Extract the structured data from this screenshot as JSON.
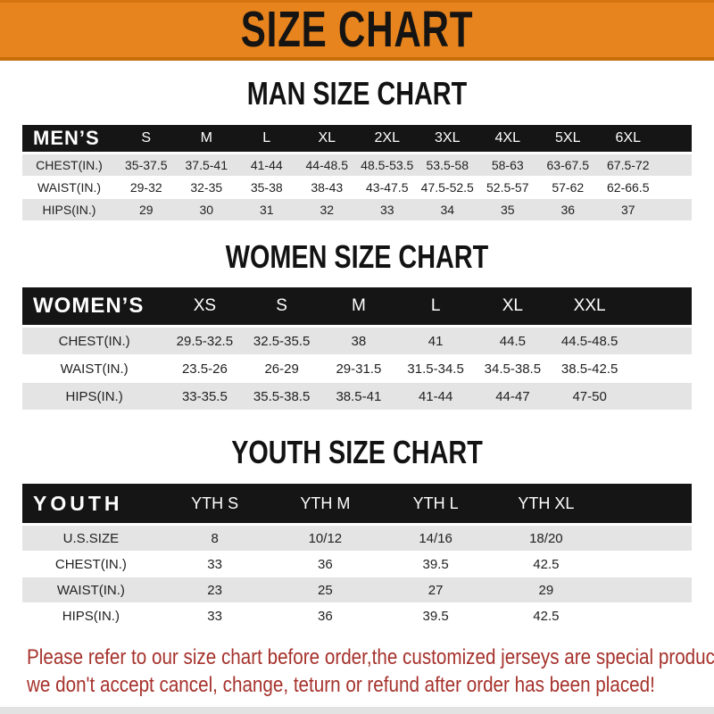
{
  "banner": {
    "title": "SIZE CHART"
  },
  "colors": {
    "banner_orange": "#E8841E",
    "band_black": "#151515",
    "row_gray": "#E4E4E4",
    "footer_red": "#A6322C"
  },
  "men_section": {
    "title": "MAN SIZE CHART",
    "table": {
      "header_label": "MEN’S",
      "columns": [
        "S",
        "M",
        "L",
        "XL",
        "2XL",
        "3XL",
        "4XL",
        "5XL",
        "6XL"
      ],
      "rows": [
        {
          "label": "CHEST(IN.)",
          "values": [
            "35-37.5",
            "37.5-41",
            "41-44",
            "44-48.5",
            "48.5-53.5",
            "53.5-58",
            "58-63",
            "63-67.5",
            "67.5-72"
          ]
        },
        {
          "label": "WAIST(IN.)",
          "values": [
            "29-32",
            "32-35",
            "35-38",
            "38-43",
            "43-47.5",
            "47.5-52.5",
            "52.5-57",
            "57-62",
            "62-66.5"
          ]
        },
        {
          "label": "HIPS(IN.)",
          "values": [
            "29",
            "30",
            "31",
            "32",
            "33",
            "34",
            "35",
            "36",
            "37"
          ]
        }
      ]
    }
  },
  "women_section": {
    "title": "WOMEN SIZE CHART",
    "table": {
      "header_label": "WOMEN’S",
      "columns": [
        "XS",
        "S",
        "M",
        "L",
        "XL",
        "XXL"
      ],
      "rows": [
        {
          "label": "CHEST(IN.)",
          "values": [
            "29.5-32.5",
            "32.5-35.5",
            "38",
            "41",
            "44.5",
            "44.5-48.5"
          ]
        },
        {
          "label": "WAIST(IN.)",
          "values": [
            "23.5-26",
            "26-29",
            "29-31.5",
            "31.5-34.5",
            "34.5-38.5",
            "38.5-42.5"
          ]
        },
        {
          "label": "HIPS(IN.)",
          "values": [
            "33-35.5",
            "35.5-38.5",
            "38.5-41",
            "41-44",
            "44-47",
            "47-50"
          ]
        }
      ]
    }
  },
  "youth_section": {
    "title": "YOUTH SIZE CHART",
    "table": {
      "header_label": "YOUTH",
      "columns": [
        "YTH S",
        "YTH M",
        "YTH L",
        "YTH XL"
      ],
      "rows": [
        {
          "label": "U.S.SIZE",
          "values": [
            "8",
            "10/12",
            "14/16",
            "18/20"
          ]
        },
        {
          "label": "CHEST(IN.)",
          "values": [
            "33",
            "36",
            "39.5",
            "42.5"
          ]
        },
        {
          "label": "WAIST(IN.)",
          "values": [
            "23",
            "25",
            "27",
            "29"
          ]
        },
        {
          "label": "HIPS(IN.)",
          "values": [
            "33",
            "36",
            "39.5",
            "42.5"
          ]
        }
      ]
    }
  },
  "footer": {
    "line1": "Please refer to our size chart before order,the customized jerseys are special products,",
    "line2": "we don't accept cancel, change, teturn or refund after order has been placed!"
  }
}
